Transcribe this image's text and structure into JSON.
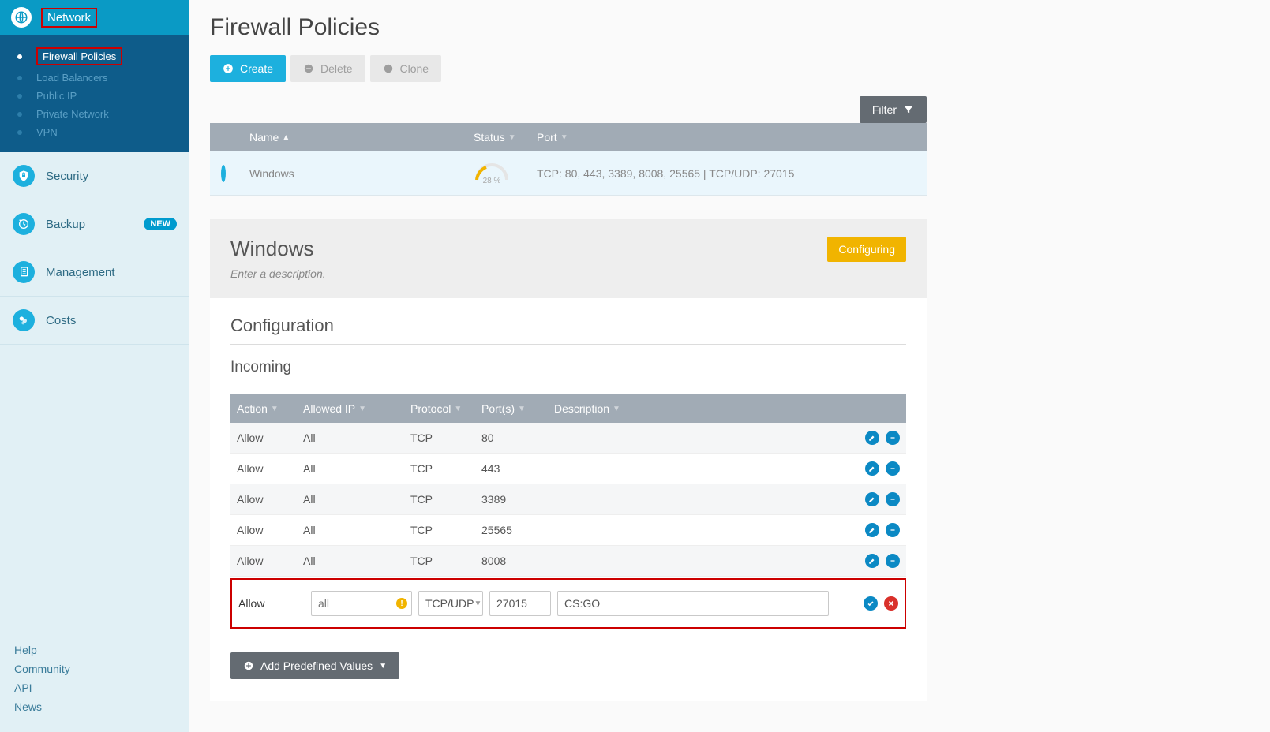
{
  "sidebar": {
    "top_label": "Network",
    "subnav": [
      {
        "label": "Firewall Policies",
        "active": true
      },
      {
        "label": "Load Balancers"
      },
      {
        "label": "Public IP"
      },
      {
        "label": "Private Network"
      },
      {
        "label": "VPN"
      }
    ],
    "rows": [
      {
        "label": "Security"
      },
      {
        "label": "Backup",
        "badge": "NEW"
      },
      {
        "label": "Management"
      },
      {
        "label": "Costs"
      }
    ],
    "footer": [
      "Help",
      "Community",
      "API",
      "News"
    ]
  },
  "page_title": "Firewall Policies",
  "toolbar": {
    "create_label": "Create",
    "delete_label": "Delete",
    "clone_label": "Clone",
    "filter_label": "Filter"
  },
  "table": {
    "columns": {
      "name": "Name",
      "status": "Status",
      "port": "Port"
    },
    "row": {
      "name": "Windows",
      "gauge_percent": 28,
      "gauge_label": "28 %",
      "ports_text": "TCP: 80, 443, 3389, 8008, 25565 | TCP/UDP: 27015"
    }
  },
  "detail": {
    "title": "Windows",
    "description_placeholder": "Enter a description.",
    "status_badge": "Configuring"
  },
  "configuration": {
    "title": "Configuration",
    "incoming_title": "Incoming",
    "columns": {
      "action": "Action",
      "allowed_ip": "Allowed IP",
      "protocol": "Protocol",
      "ports": "Port(s)",
      "description": "Description"
    },
    "rules": [
      {
        "action": "Allow",
        "ip": "All",
        "protocol": "TCP",
        "ports": "80",
        "description": ""
      },
      {
        "action": "Allow",
        "ip": "All",
        "protocol": "TCP",
        "ports": "443",
        "description": ""
      },
      {
        "action": "Allow",
        "ip": "All",
        "protocol": "TCP",
        "ports": "3389",
        "description": ""
      },
      {
        "action": "Allow",
        "ip": "All",
        "protocol": "TCP",
        "ports": "25565",
        "description": ""
      },
      {
        "action": "Allow",
        "ip": "All",
        "protocol": "TCP",
        "ports": "8008",
        "description": ""
      }
    ],
    "edit": {
      "action": "Allow",
      "ip_placeholder": "all",
      "protocol": "TCP/UDP",
      "ports": "27015",
      "description": "CS:GO"
    },
    "add_predefined_label": "Add Predefined Values"
  },
  "colors": {
    "primary": "#1db0de",
    "sidebar_top": "#0a9ac5",
    "sidebar_sub": "#0e5c8a",
    "warning": "#f1b400",
    "danger": "#d9302a",
    "highlight": "#cc0000",
    "header": "#a1abb5"
  }
}
